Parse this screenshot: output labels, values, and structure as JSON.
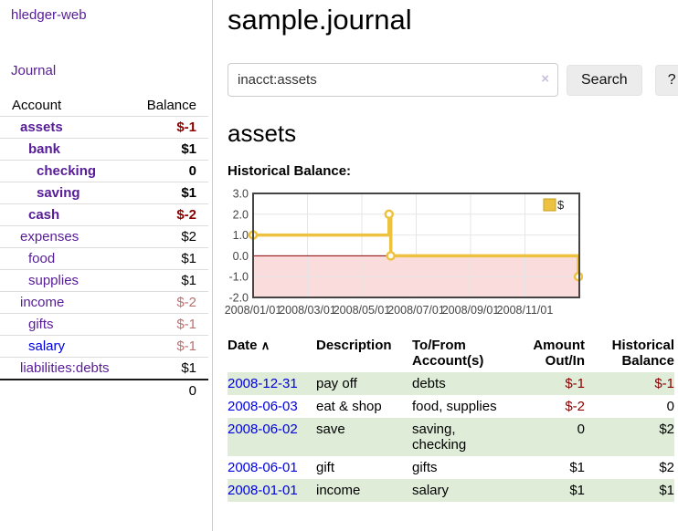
{
  "sidebar": {
    "app_title": "hledger-web",
    "nav": {
      "journal": "Journal"
    },
    "accounts": {
      "headers": {
        "account": "Account",
        "balance": "Balance"
      },
      "rows": [
        {
          "name": "assets",
          "balance": "$-1",
          "indent": 0,
          "bold": true,
          "link": "purple",
          "bal_color": "red"
        },
        {
          "name": "bank",
          "balance": "$1",
          "indent": 1,
          "bold": true,
          "link": "purple",
          "bal_color": "black"
        },
        {
          "name": "checking",
          "balance": "0",
          "indent": 2,
          "bold": true,
          "link": "purple",
          "bal_color": "black"
        },
        {
          "name": "saving",
          "balance": "$1",
          "indent": 2,
          "bold": true,
          "link": "purple",
          "bal_color": "black"
        },
        {
          "name": "cash",
          "balance": "$-2",
          "indent": 1,
          "bold": true,
          "link": "purple",
          "bal_color": "red"
        },
        {
          "name": "expenses",
          "balance": "$2",
          "indent": 0,
          "bold": false,
          "link": "purple",
          "bal_color": "black"
        },
        {
          "name": "food",
          "balance": "$1",
          "indent": 1,
          "bold": false,
          "link": "purple",
          "bal_color": "black"
        },
        {
          "name": "supplies",
          "balance": "$1",
          "indent": 1,
          "bold": false,
          "link": "purple",
          "bal_color": "black"
        },
        {
          "name": "income",
          "balance": "$-2",
          "indent": 0,
          "bold": false,
          "link": "purple",
          "bal_color": "rose"
        },
        {
          "name": "gifts",
          "balance": "$-1",
          "indent": 1,
          "bold": false,
          "link": "purple",
          "bal_color": "rose"
        },
        {
          "name": "salary",
          "balance": "$-1",
          "indent": 1,
          "bold": false,
          "link": "blue",
          "bal_color": "rose"
        },
        {
          "name": "liabilities:debts",
          "balance": "$1",
          "indent": 0,
          "bold": false,
          "link": "purple",
          "bal_color": "black"
        }
      ],
      "total": "0"
    }
  },
  "header": {
    "title": "sample.journal"
  },
  "search": {
    "value": "inacct:assets",
    "clear": "×",
    "button_label": "Search",
    "help_label": "?"
  },
  "account_page": {
    "heading": "assets",
    "chart_title": "Historical Balance:"
  },
  "chart_data": {
    "type": "line",
    "step": true,
    "title": "Historical Balance",
    "series": [
      {
        "name": "$",
        "color": "#edc240",
        "points": [
          [
            "2008-01-01",
            1
          ],
          [
            "2008-06-01",
            2
          ],
          [
            "2008-06-03",
            0
          ],
          [
            "2008-12-31",
            -1
          ]
        ]
      }
    ],
    "ylim": [
      -2,
      3
    ],
    "xlim_months": [
      0,
      12
    ],
    "yticks": [
      "3.0",
      "2.0",
      "1.0",
      "0.0",
      "-1.0",
      "-2.0"
    ],
    "xticks": [
      "2008/01/01",
      "2008/03/01",
      "2008/05/01",
      "2008/07/01",
      "2008/09/01",
      "2008/11/01"
    ],
    "grid": true,
    "legend_position": "top-right",
    "negative_fill": "#fbdcdc",
    "zero_line_color": "#8b0000",
    "border_color": "#444444",
    "grid_color": "#e6e6e6"
  },
  "register": {
    "headers": {
      "date": "Date",
      "sort_indicator": "∧",
      "description": "Description",
      "accounts": "To/From Account(s)",
      "amount": "Amount Out/In",
      "balance": "Historical Balance"
    },
    "rows": [
      {
        "date": "2008-12-31",
        "description": "pay off",
        "accounts": "debts",
        "amount": "$-1",
        "balance": "$-1"
      },
      {
        "date": "2008-06-03",
        "description": "eat & shop",
        "accounts": "food, supplies",
        "amount": "$-2",
        "balance": "0"
      },
      {
        "date": "2008-06-02",
        "description": "save",
        "accounts": "saving, checking",
        "amount": "0",
        "balance": "$2"
      },
      {
        "date": "2008-06-01",
        "description": "gift",
        "accounts": "gifts",
        "amount": "$1",
        "balance": "$2"
      },
      {
        "date": "2008-01-01",
        "description": "income",
        "accounts": "salary",
        "amount": "$1",
        "balance": "$1"
      }
    ]
  },
  "colors": {
    "link_purple": "#571c97",
    "link_blue": "#0000e0",
    "negative_strong": "#8b0000",
    "negative_muted": "#b87272",
    "row_stripe_green": "#deecd8",
    "chart_line": "#edc240"
  }
}
